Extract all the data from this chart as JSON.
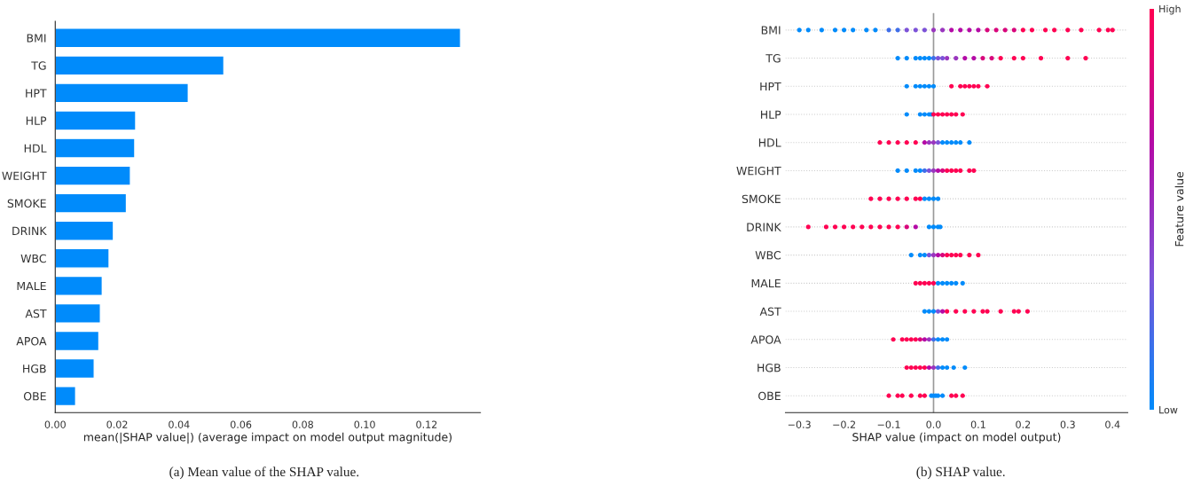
{
  "chart_data": [
    {
      "type": "bar",
      "orientation": "horizontal",
      "color": "#008bfb",
      "xlabel": "mean(|SHAP value|) (average impact on model output magnitude)",
      "categories": [
        "BMI",
        "TG",
        "HPT",
        "HLP",
        "HDL",
        "WEIGHT",
        "SMOKE",
        "DRINK",
        "WBC",
        "MALE",
        "AST",
        "APOA",
        "HGB",
        "OBE"
      ],
      "values": [
        0.131,
        0.0545,
        0.043,
        0.026,
        0.0257,
        0.0243,
        0.023,
        0.0188,
        0.0174,
        0.0152,
        0.0146,
        0.0141,
        0.0126,
        0.0066
      ],
      "xlim": [
        0,
        0.1374
      ],
      "xticks": [
        {
          "value": 0,
          "label": "0.00"
        },
        {
          "value": 0.02,
          "label": "0.02"
        },
        {
          "value": 0.04,
          "label": "0.04"
        },
        {
          "value": 0.06,
          "label": "0.06"
        },
        {
          "value": 0.08,
          "label": "0.08"
        },
        {
          "value": 0.1,
          "label": "0.10"
        },
        {
          "value": 0.12,
          "label": "0.12"
        }
      ],
      "grid": false,
      "annotations": [
        "(a) Mean value of the SHAP value."
      ]
    },
    {
      "type": "scatter",
      "orientation": "horizontal",
      "xlabel": "SHAP value (impact on model output)",
      "clabel": "Feature value",
      "categories": [
        "BMI",
        "TG",
        "HPT",
        "HLP",
        "HDL",
        "WEIGHT",
        "SMOKE",
        "DRINK",
        "WBC",
        "MALE",
        "AST",
        "APOA",
        "HGB",
        "OBE"
      ],
      "series": [
        {
          "x": [
            "BMI",
            "BMI",
            "BMI",
            "BMI",
            "BMI",
            "BMI",
            "BMI",
            "BMI",
            "BMI",
            "BMI",
            "BMI",
            "BMI",
            "BMI",
            "BMI",
            "BMI",
            "BMI",
            "BMI",
            "BMI",
            "BMI",
            "BMI",
            "BMI",
            "BMI",
            "BMI",
            "BMI",
            "BMI",
            "BMI",
            "BMI",
            "BMI",
            "BMI",
            "BMI",
            "BMI",
            "BMI"
          ],
          "values": [
            -0.3,
            -0.28,
            -0.25,
            -0.22,
            -0.2,
            -0.18,
            -0.15,
            -0.13,
            -0.1,
            -0.08,
            -0.06,
            -0.04,
            -0.02,
            0.0,
            0.02,
            0.04,
            0.06,
            0.08,
            0.1,
            0.12,
            0.14,
            0.16,
            0.18,
            0.2,
            0.22,
            0.25,
            0.27,
            0.3,
            0.33,
            0.37,
            0.39,
            0.4
          ],
          "colors": [
            "#008bfb",
            "#008bfb",
            "#008bfb",
            "#008bfb",
            "#008bfb",
            "#008bfb",
            "#008bfb",
            "#008bfb",
            "#3f6ee9",
            "#3f6ee9",
            "#7c52d8",
            "#7c52d8",
            "#7c52d8",
            "#9a36bf",
            "#9a36bf",
            "#b40aa6",
            "#b40aa6",
            "#b40aa6",
            "#b40aa6",
            "#d8067c",
            "#d8067c",
            "#d8067c",
            "#d8067c",
            "#ff0052",
            "#ff0052",
            "#ff0052",
            "#ff0052",
            "#ff0052",
            "#ff0052",
            "#ff0052",
            "#ff0052",
            "#ff0052"
          ]
        },
        {
          "x": [
            "TG",
            "TG",
            "TG",
            "TG",
            "TG",
            "TG",
            "TG",
            "TG",
            "TG",
            "TG",
            "TG",
            "TG",
            "TG",
            "TG",
            "TG",
            "TG",
            "TG",
            "TG",
            "TG",
            "TG",
            "TG"
          ],
          "values": [
            -0.08,
            -0.06,
            -0.04,
            -0.03,
            -0.02,
            -0.01,
            0.0,
            0.01,
            0.02,
            0.03,
            0.05,
            0.07,
            0.09,
            0.11,
            0.13,
            0.15,
            0.18,
            0.2,
            0.24,
            0.3,
            0.34
          ],
          "colors": [
            "#008bfb",
            "#008bfb",
            "#008bfb",
            "#008bfb",
            "#008bfb",
            "#008bfb",
            "#3f6ee9",
            "#7c52d8",
            "#7c52d8",
            "#9a36bf",
            "#9a36bf",
            "#b40aa6",
            "#b40aa6",
            "#d8067c",
            "#d8067c",
            "#ff0052",
            "#ff0052",
            "#ff0052",
            "#ff0052",
            "#ff0052",
            "#ff0052"
          ]
        },
        {
          "x": [
            "HPT",
            "HPT",
            "HPT",
            "HPT",
            "HPT",
            "HPT",
            "HPT",
            "HPT",
            "HPT",
            "HPT",
            "HPT",
            "HPT",
            "HPT"
          ],
          "values": [
            -0.06,
            -0.04,
            -0.03,
            -0.02,
            -0.01,
            0.0,
            0.04,
            0.06,
            0.07,
            0.08,
            0.09,
            0.1,
            0.12
          ],
          "colors": [
            "#008bfb",
            "#008bfb",
            "#008bfb",
            "#008bfb",
            "#008bfb",
            "#008bfb",
            "#ff0052",
            "#ff0052",
            "#ff0052",
            "#ff0052",
            "#ff0052",
            "#ff0052",
            "#ff0052"
          ]
        },
        {
          "x": [
            "HLP",
            "HLP",
            "HLP",
            "HLP",
            "HLP",
            "HLP",
            "HLP",
            "HLP",
            "HLP",
            "HLP",
            "HLP",
            "HLP"
          ],
          "values": [
            -0.06,
            -0.03,
            -0.02,
            -0.01,
            -0.005,
            0.0,
            0.01,
            0.02,
            0.03,
            0.04,
            0.05,
            0.065
          ],
          "colors": [
            "#008bfb",
            "#008bfb",
            "#008bfb",
            "#008bfb",
            "#008bfb",
            "#ff0052",
            "#ff0052",
            "#ff0052",
            "#ff0052",
            "#ff0052",
            "#ff0052",
            "#ff0052"
          ]
        },
        {
          "x": [
            "HDL",
            "HDL",
            "HDL",
            "HDL",
            "HDL",
            "HDL",
            "HDL",
            "HDL",
            "HDL",
            "HDL",
            "HDL",
            "HDL",
            "HDL",
            "HDL",
            "HDL"
          ],
          "values": [
            -0.12,
            -0.1,
            -0.08,
            -0.06,
            -0.04,
            -0.02,
            -0.01,
            0.0,
            0.01,
            0.02,
            0.03,
            0.04,
            0.05,
            0.06,
            0.08
          ],
          "colors": [
            "#ff0052",
            "#ff0052",
            "#ff0052",
            "#ff0052",
            "#ff0052",
            "#b40aa6",
            "#9a36bf",
            "#9a36bf",
            "#7c52d8",
            "#008bfb",
            "#008bfb",
            "#008bfb",
            "#008bfb",
            "#008bfb",
            "#008bfb"
          ]
        },
        {
          "x": [
            "WEIGHT",
            "WEIGHT",
            "WEIGHT",
            "WEIGHT",
            "WEIGHT",
            "WEIGHT",
            "WEIGHT",
            "WEIGHT",
            "WEIGHT",
            "WEIGHT",
            "WEIGHT",
            "WEIGHT",
            "WEIGHT",
            "WEIGHT",
            "WEIGHT"
          ],
          "values": [
            -0.08,
            -0.06,
            -0.04,
            -0.03,
            -0.02,
            -0.01,
            0.0,
            0.01,
            0.02,
            0.03,
            0.04,
            0.05,
            0.06,
            0.08,
            0.09
          ],
          "colors": [
            "#008bfb",
            "#008bfb",
            "#008bfb",
            "#008bfb",
            "#3f6ee9",
            "#7c52d8",
            "#9a36bf",
            "#b40aa6",
            "#d8067c",
            "#ff0052",
            "#ff0052",
            "#ff0052",
            "#ff0052",
            "#ff0052",
            "#ff0052"
          ]
        },
        {
          "x": [
            "SMOKE",
            "SMOKE",
            "SMOKE",
            "SMOKE",
            "SMOKE",
            "SMOKE",
            "SMOKE",
            "SMOKE",
            "SMOKE",
            "SMOKE",
            "SMOKE"
          ],
          "values": [
            -0.14,
            -0.12,
            -0.1,
            -0.08,
            -0.06,
            -0.04,
            -0.03,
            -0.02,
            -0.01,
            0.0,
            0.01
          ],
          "colors": [
            "#ff0052",
            "#ff0052",
            "#ff0052",
            "#ff0052",
            "#ff0052",
            "#ff0052",
            "#ff0052",
            "#008bfb",
            "#008bfb",
            "#008bfb",
            "#008bfb"
          ]
        },
        {
          "x": [
            "DRINK",
            "DRINK",
            "DRINK",
            "DRINK",
            "DRINK",
            "DRINK",
            "DRINK",
            "DRINK",
            "DRINK",
            "DRINK",
            "DRINK",
            "DRINK",
            "DRINK",
            "DRINK",
            "DRINK",
            "DRINK"
          ],
          "values": [
            -0.28,
            -0.24,
            -0.22,
            -0.2,
            -0.18,
            -0.16,
            -0.14,
            -0.12,
            -0.1,
            -0.08,
            -0.06,
            -0.04,
            -0.01,
            0.0,
            0.01,
            0.015
          ],
          "colors": [
            "#ff0052",
            "#ff0052",
            "#ff0052",
            "#ff0052",
            "#ff0052",
            "#ff0052",
            "#ff0052",
            "#ff0052",
            "#ff0052",
            "#ff0052",
            "#d8067c",
            "#b40aa6",
            "#008bfb",
            "#008bfb",
            "#008bfb",
            "#008bfb"
          ]
        },
        {
          "x": [
            "WBC",
            "WBC",
            "WBC",
            "WBC",
            "WBC",
            "WBC",
            "WBC",
            "WBC",
            "WBC",
            "WBC",
            "WBC",
            "WBC",
            "WBC"
          ],
          "values": [
            -0.05,
            -0.03,
            -0.02,
            -0.01,
            0.0,
            0.01,
            0.02,
            0.03,
            0.04,
            0.05,
            0.06,
            0.08,
            0.1
          ],
          "colors": [
            "#008bfb",
            "#008bfb",
            "#008bfb",
            "#7c52d8",
            "#9a36bf",
            "#b40aa6",
            "#d8067c",
            "#ff0052",
            "#ff0052",
            "#ff0052",
            "#ff0052",
            "#ff0052",
            "#ff0052"
          ]
        },
        {
          "x": [
            "MALE",
            "MALE",
            "MALE",
            "MALE",
            "MALE",
            "MALE",
            "MALE",
            "MALE",
            "MALE",
            "MALE",
            "MALE"
          ],
          "values": [
            -0.04,
            -0.03,
            -0.02,
            -0.01,
            0.0,
            0.01,
            0.02,
            0.03,
            0.04,
            0.05,
            0.065
          ],
          "colors": [
            "#ff0052",
            "#ff0052",
            "#ff0052",
            "#ff0052",
            "#ff0052",
            "#008bfb",
            "#008bfb",
            "#008bfb",
            "#008bfb",
            "#008bfb",
            "#008bfb"
          ]
        },
        {
          "x": [
            "AST",
            "AST",
            "AST",
            "AST",
            "AST",
            "AST",
            "AST",
            "AST",
            "AST",
            "AST",
            "AST",
            "AST",
            "AST",
            "AST",
            "AST"
          ],
          "values": [
            -0.02,
            -0.01,
            0.0,
            0.01,
            0.02,
            0.03,
            0.05,
            0.07,
            0.09,
            0.11,
            0.12,
            0.15,
            0.18,
            0.19,
            0.21
          ],
          "colors": [
            "#008bfb",
            "#008bfb",
            "#008bfb",
            "#7c52d8",
            "#b40aa6",
            "#ff0052",
            "#ff0052",
            "#ff0052",
            "#ff0052",
            "#ff0052",
            "#ff0052",
            "#ff0052",
            "#ff0052",
            "#ff0052",
            "#ff0052"
          ]
        },
        {
          "x": [
            "APOA",
            "APOA",
            "APOA",
            "APOA",
            "APOA",
            "APOA",
            "APOA",
            "APOA",
            "APOA",
            "APOA",
            "APOA",
            "APOA"
          ],
          "values": [
            -0.09,
            -0.07,
            -0.06,
            -0.05,
            -0.04,
            -0.03,
            -0.02,
            -0.01,
            0.0,
            0.01,
            0.02,
            0.03
          ],
          "colors": [
            "#ff0052",
            "#ff0052",
            "#ff0052",
            "#ff0052",
            "#ff0052",
            "#d8067c",
            "#b40aa6",
            "#9a36bf",
            "#3f6ee9",
            "#008bfb",
            "#008bfb",
            "#008bfb"
          ]
        },
        {
          "x": [
            "HGB",
            "HGB",
            "HGB",
            "HGB",
            "HGB",
            "HGB",
            "HGB",
            "HGB",
            "HGB",
            "HGB",
            "HGB",
            "HGB"
          ],
          "values": [
            -0.06,
            -0.05,
            -0.04,
            -0.03,
            -0.02,
            -0.01,
            0.0,
            0.01,
            0.02,
            0.03,
            0.045,
            0.07
          ],
          "colors": [
            "#ff0052",
            "#ff0052",
            "#ff0052",
            "#ff0052",
            "#ff0052",
            "#b40aa6",
            "#9a36bf",
            "#3f6ee9",
            "#008bfb",
            "#008bfb",
            "#008bfb",
            "#008bfb"
          ]
        },
        {
          "x": [
            "OBE",
            "OBE",
            "OBE",
            "OBE",
            "OBE",
            "OBE",
            "OBE",
            "OBE",
            "OBE",
            "OBE",
            "OBE",
            "OBE",
            "OBE",
            "OBE"
          ],
          "values": [
            -0.1,
            -0.08,
            -0.07,
            -0.05,
            -0.03,
            -0.02,
            -0.005,
            0.0,
            0.005,
            0.01,
            0.02,
            0.04,
            0.05,
            0.065
          ],
          "colors": [
            "#ff0052",
            "#ff0052",
            "#ff0052",
            "#ff0052",
            "#ff0052",
            "#ff0052",
            "#008bfb",
            "#008bfb",
            "#008bfb",
            "#008bfb",
            "#008bfb",
            "#ff0052",
            "#ff0052",
            "#ff0052"
          ]
        }
      ],
      "xlim": [
        -0.331,
        0.434
      ],
      "xticks": [
        {
          "value": -0.3,
          "label": "−0.3"
        },
        {
          "value": -0.2,
          "label": "−0.2"
        },
        {
          "value": -0.1,
          "label": "−0.1"
        },
        {
          "value": 0,
          "label": "0.0"
        },
        {
          "value": 0.1,
          "label": "0.1"
        },
        {
          "value": 0.2,
          "label": "0.2"
        },
        {
          "value": 0.3,
          "label": "0.3"
        },
        {
          "value": 0.4,
          "label": "0.4"
        }
      ],
      "clim": [
        0,
        1
      ],
      "cticks": [
        {
          "value": 0,
          "label": "Low"
        },
        {
          "value": 1,
          "label": "High"
        }
      ],
      "ref_lines": [
        {
          "axis": "x",
          "value": 0,
          "color": "#999999"
        }
      ],
      "grid": "y",
      "line_style": "dotted",
      "annotations": [
        "(b) SHAP value."
      ]
    }
  ]
}
